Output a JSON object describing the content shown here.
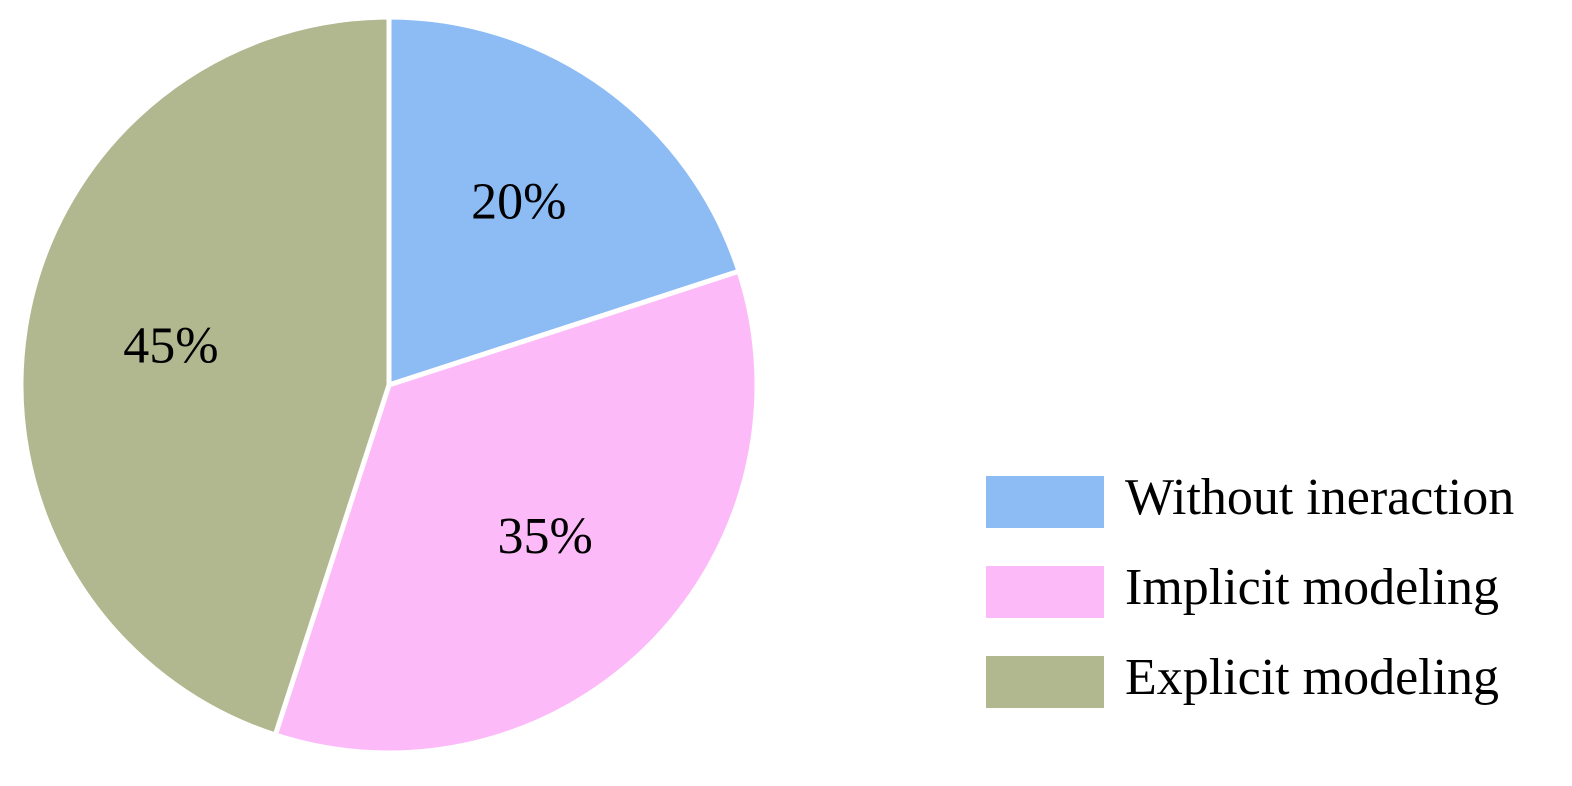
{
  "chart_data": {
    "type": "pie",
    "categories": [
      "Without ineraction",
      "Implicit modeling",
      "Explicit modeling"
    ],
    "values": [
      20,
      35,
      45
    ],
    "value_labels": [
      "20%",
      "35%",
      "45%"
    ],
    "colors": [
      "#8dbcf5",
      "#fdbaf9",
      "#b1b78f"
    ],
    "legend": "lower right"
  }
}
